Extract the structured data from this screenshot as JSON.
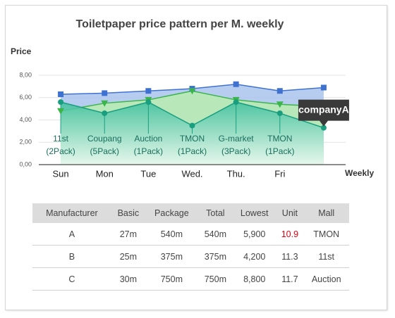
{
  "chart_data": {
    "type": "area",
    "title": "Toiletpaper price pattern per M. weekly",
    "y_label": "Price",
    "x_label": "Weekly",
    "categories": [
      "Sun",
      "Mon",
      "Tue",
      "Wed.",
      "Thu.",
      "Fri",
      null
    ],
    "ylim": [
      0,
      8
    ],
    "yticks": [
      {
        "value": 0,
        "label": "0,00"
      },
      {
        "value": 2,
        "label": "2,00"
      },
      {
        "value": 4,
        "label": "4,00"
      },
      {
        "value": 6,
        "label": "6,00"
      },
      {
        "value": 8,
        "label": "8,00"
      }
    ],
    "grid": true,
    "series": [
      {
        "color": "#3f72d0",
        "fill": "#a9c4ee",
        "marker": "square",
        "values": [
          6.3,
          6.4,
          6.6,
          6.8,
          7.2,
          6.6,
          6.9
        ]
      },
      {
        "color": "#3bb54a",
        "fill": "#b9ecb0",
        "marker": "triangle-down",
        "values": [
          4.8,
          5.5,
          5.8,
          6.6,
          5.8,
          5.4,
          5.2
        ]
      },
      {
        "name": "companyA",
        "color": "#1a9e80",
        "fill": "#3cbf9b",
        "marker": "circle",
        "values": [
          5.6,
          4.6,
          5.6,
          3.5,
          5.6,
          4.6,
          3.3
        ]
      }
    ],
    "point_labels": [
      [
        "11st",
        "(2Pack)"
      ],
      [
        "Coupang",
        "(5Pack)"
      ],
      [
        "Auction",
        "(1Pack)"
      ],
      [
        "TMON",
        "(1Pack)"
      ],
      [
        "G-market",
        "(3Pack)"
      ],
      [
        "TMON",
        "(1Pack)"
      ]
    ]
  },
  "table": {
    "header": [
      "Manufacturer",
      "Basic",
      "Package",
      "Total",
      "Lowest",
      "Unit",
      "Mall"
    ],
    "rows": [
      [
        "A",
        "27m",
        "540m",
        "540m",
        "5,900",
        "10.9",
        "TMON"
      ],
      [
        "B",
        "25m",
        "375m",
        "375m",
        "4,200",
        "11.3",
        "11st"
      ],
      [
        "C",
        "30m",
        "750m",
        "750m",
        "8,800",
        "11.7",
        "Auction"
      ]
    ]
  }
}
